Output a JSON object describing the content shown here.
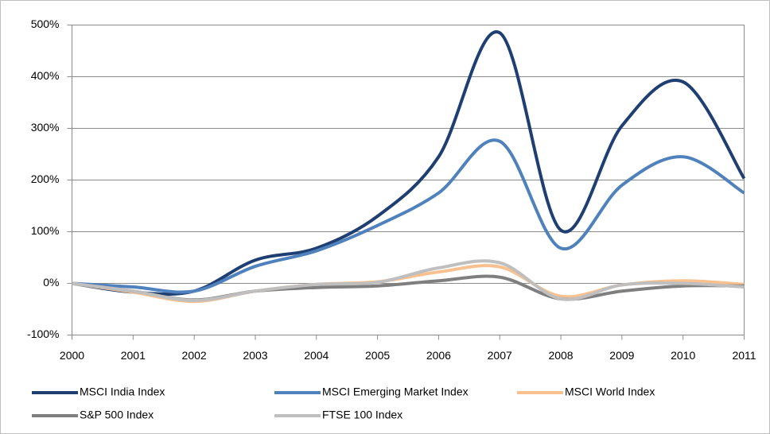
{
  "chart_data": {
    "type": "line",
    "x": [
      2000,
      2001,
      2002,
      2003,
      2004,
      2005,
      2006,
      2007,
      2008,
      2009,
      2010,
      2011
    ],
    "xlim": [
      2000,
      2011
    ],
    "xticks": [
      2000,
      2001,
      2002,
      2003,
      2004,
      2005,
      2006,
      2007,
      2008,
      2009,
      2010,
      2011
    ],
    "ylim": [
      -100,
      500
    ],
    "yticks": [
      {
        "value": -100,
        "label": "-100%"
      },
      {
        "value": 0,
        "label": "0%"
      },
      {
        "value": 100,
        "label": "100%"
      },
      {
        "value": 200,
        "label": "200%"
      },
      {
        "value": 300,
        "label": "300%"
      },
      {
        "value": 400,
        "label": "400%"
      },
      {
        "value": 500,
        "label": "500%"
      }
    ],
    "grid": true,
    "legend": "bottom",
    "series": [
      {
        "name": "MSCI India Index",
        "color": "#1f3f73",
        "values": [
          0,
          -17,
          -15,
          45,
          68,
          130,
          245,
          485,
          103,
          305,
          390,
          203
        ]
      },
      {
        "name": "MSCI Emerging Market Index",
        "color": "#4f81bd",
        "values": [
          0,
          -7,
          -15,
          33,
          63,
          112,
          175,
          275,
          68,
          190,
          245,
          175
        ]
      },
      {
        "name": "MSCI World Index",
        "color": "#f9c090",
        "values": [
          0,
          -17,
          -35,
          -15,
          -2,
          3,
          22,
          32,
          -25,
          -3,
          5,
          -2
        ]
      },
      {
        "name": "S&P 500 Index",
        "color": "#7f7f7f",
        "values": [
          0,
          -15,
          -32,
          -15,
          -8,
          -5,
          5,
          12,
          -30,
          -15,
          -5,
          -5
        ]
      },
      {
        "name": "FTSE 100 Index",
        "color": "#bfbfbf",
        "values": [
          0,
          -15,
          -33,
          -15,
          -2,
          2,
          30,
          40,
          -30,
          -3,
          0,
          -7
        ]
      }
    ]
  }
}
